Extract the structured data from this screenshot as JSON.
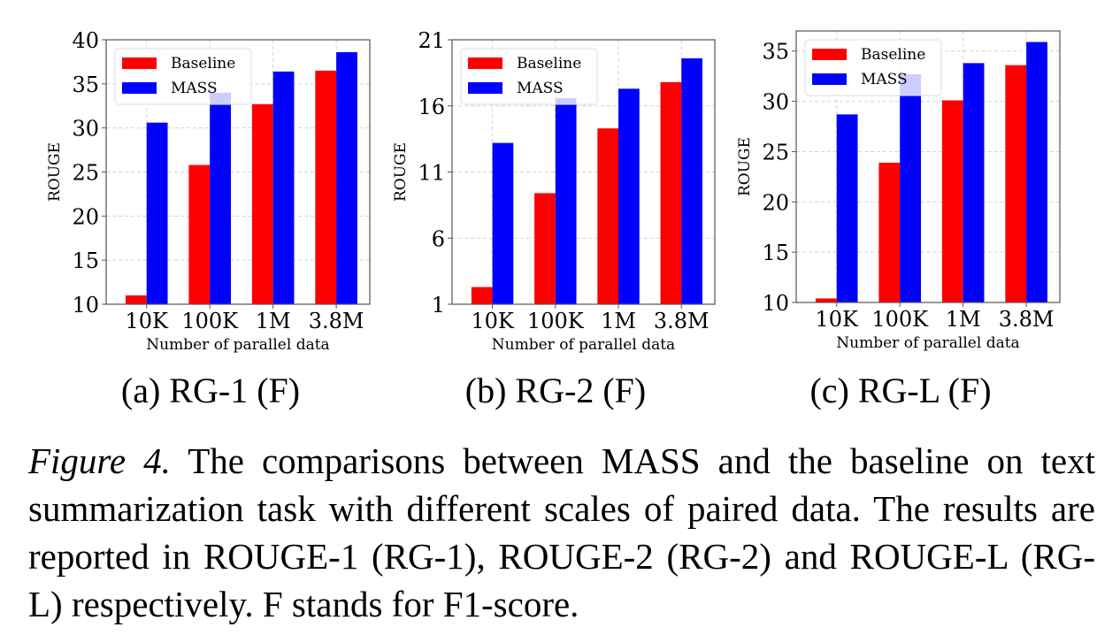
{
  "legend": {
    "baseline_label": "Baseline",
    "mass_label": "MASS"
  },
  "colors": {
    "baseline": "#ff0000",
    "mass": "#0000ff",
    "grid": "#d3d3d3",
    "axis": "#555555"
  },
  "chart_data": [
    {
      "type": "bar",
      "id": "a",
      "subcaption": "(a) RG-1 (F)",
      "categories": [
        "10K",
        "100K",
        "1M",
        "3.8M"
      ],
      "xlabel": "Number of parallel data",
      "ylabel": "ROUGE",
      "ylim": [
        10,
        40
      ],
      "yticks": [
        10,
        15,
        20,
        25,
        30,
        35,
        40
      ],
      "grid": true,
      "legend_position": "top-left",
      "series": [
        {
          "name": "Baseline",
          "values": [
            11.0,
            25.8,
            32.7,
            36.5
          ]
        },
        {
          "name": "MASS",
          "values": [
            30.6,
            34.0,
            36.4,
            38.6
          ]
        }
      ]
    },
    {
      "type": "bar",
      "id": "b",
      "subcaption": "(b) RG-2 (F)",
      "categories": [
        "10K",
        "100K",
        "1M",
        "3.8M"
      ],
      "xlabel": "Number of parallel data",
      "ylabel": "ROUGE",
      "ylim": [
        1,
        21
      ],
      "yticks": [
        1,
        6,
        11,
        16,
        21
      ],
      "grid": true,
      "legend_position": "top-left",
      "series": [
        {
          "name": "Baseline",
          "values": [
            2.3,
            9.4,
            14.3,
            17.8
          ]
        },
        {
          "name": "MASS",
          "values": [
            13.2,
            16.6,
            17.3,
            19.6
          ]
        }
      ]
    },
    {
      "type": "bar",
      "id": "c",
      "subcaption": "(c) RG-L (F)",
      "categories": [
        "10K",
        "100K",
        "1M",
        "3.8M"
      ],
      "xlabel": "Number of parallel data",
      "ylabel": "ROUGE",
      "ylim": [
        10,
        37
      ],
      "yticks": [
        10,
        15,
        20,
        25,
        30,
        35
      ],
      "grid": true,
      "legend_position": "top-left",
      "series": [
        {
          "name": "Baseline",
          "values": [
            10.4,
            23.9,
            30.1,
            33.6
          ]
        },
        {
          "name": "MASS",
          "values": [
            28.7,
            32.7,
            33.8,
            35.9
          ]
        }
      ]
    }
  ],
  "caption": {
    "figure_label": "Figure 4.",
    "text": " The comparisons between MASS and the baseline on text summarization task with different scales of paired data. The results are reported in ROUGE-1 (RG-1), ROUGE-2 (RG-2) and ROUGE-L (RG-L) respectively. F stands for F1-score."
  }
}
